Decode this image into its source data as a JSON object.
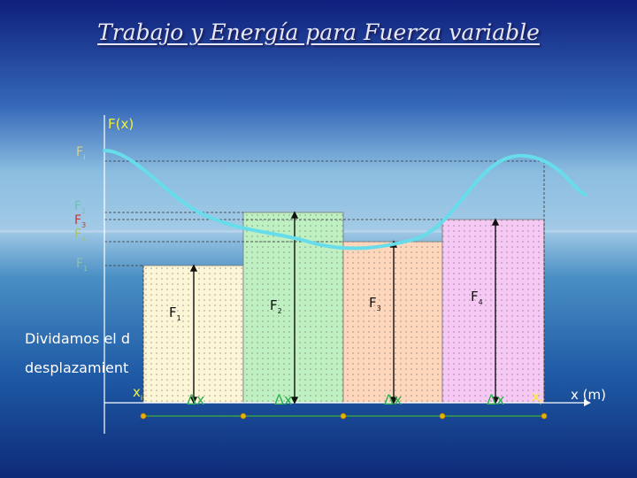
{
  "title": "Trabajo y Energía para Fuerza variable",
  "axis": {
    "y_label": "F(x)",
    "x_label": "x (m)"
  },
  "y_labels": [
    {
      "base": "F",
      "sub": "i",
      "color": "#d4d28a"
    },
    {
      "base": "F",
      "sub": "2",
      "color": "#6fc0b8"
    },
    {
      "base": "F",
      "sub": "3",
      "color": "#c23a3a"
    },
    {
      "base": "F",
      "sub": "4",
      "color": "#a6c26a"
    },
    {
      "base": "F",
      "sub": "1",
      "color": "#8cc0b0"
    }
  ],
  "bar_labels": [
    {
      "base": "F",
      "sub": "1"
    },
    {
      "base": "F",
      "sub": "2"
    },
    {
      "base": "F",
      "sub": "3"
    },
    {
      "base": "F",
      "sub": "4"
    }
  ],
  "delta_labels": [
    "Δx",
    "Δx",
    "Δx",
    "Δx"
  ],
  "x_initial": {
    "base": "x",
    "sub": "i"
  },
  "x_final": {
    "base": "x",
    "sub": "f"
  },
  "text_lines": [
    "Dividamos el d",
    "desplazamient"
  ],
  "colors": {
    "bar1": "#fcf6d6",
    "bar2": "#bff0c2",
    "bar3": "#fdd6bc",
    "bar4": "#f6c8f4",
    "curve": "#67dcea",
    "delta_text": "#2fae4f",
    "segment_line": "#3fae3a",
    "marker_fill": "#e4b20d"
  }
}
